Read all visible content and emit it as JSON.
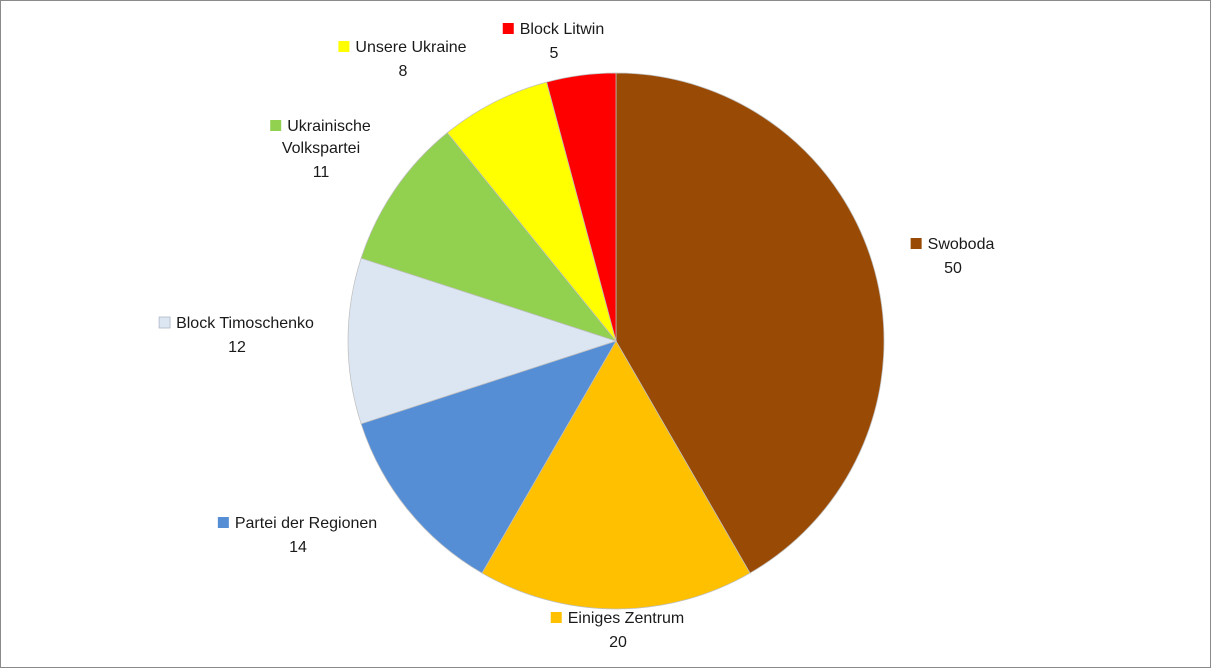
{
  "chart_data": {
    "type": "pie",
    "title": "",
    "legend": "none",
    "start_angle_deg": 0,
    "direction": "clockwise",
    "slices": [
      {
        "label_lines": [
          "Swoboda"
        ],
        "value": 50,
        "value_label": "50",
        "color": "#994A05"
      },
      {
        "label_lines": [
          "Einiges Zentrum"
        ],
        "value": 20,
        "value_label": "20",
        "color": "#FFC000"
      },
      {
        "label_lines": [
          "Partei der Regionen"
        ],
        "value": 14,
        "value_label": "14",
        "color": "#558ED5"
      },
      {
        "label_lines": [
          "Block Timoschenko"
        ],
        "value": 12,
        "value_label": "12",
        "color": "#DCE6F2"
      },
      {
        "label_lines": [
          "Ukrainische",
          "Volkspartei"
        ],
        "value": 11,
        "value_label": "11",
        "color": "#92D050"
      },
      {
        "label_lines": [
          "Unsere Ukraine"
        ],
        "value": 8,
        "value_label": "8",
        "color": "#FFFF00"
      },
      {
        "label_lines": [
          "Block Litwin"
        ],
        "value": 5,
        "value_label": "5",
        "color": "#FF0000"
      }
    ]
  }
}
